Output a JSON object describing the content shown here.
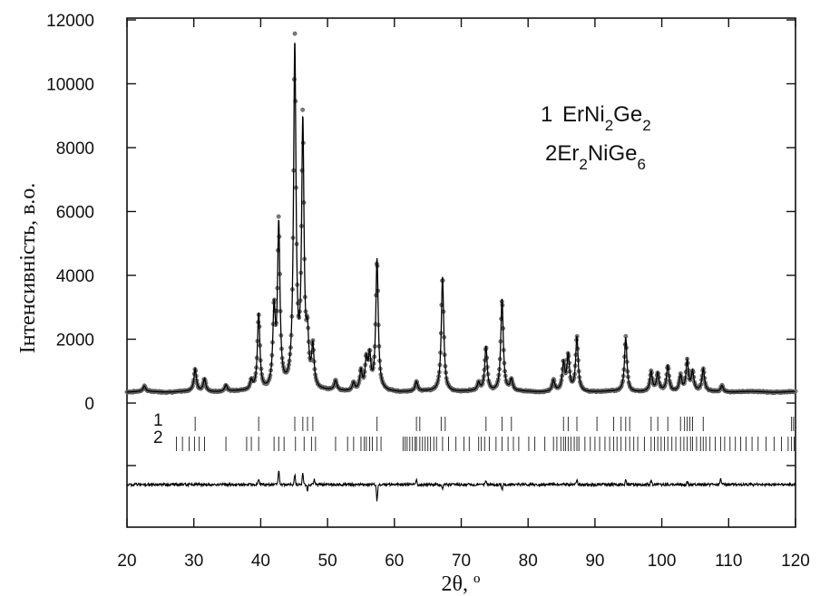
{
  "chart_data": {
    "type": "line",
    "title": "",
    "xlabel": "2θ, º",
    "ylabel": "Інтенсивність, в.о.",
    "xlim": [
      20,
      120
    ],
    "ylim": [
      0,
      12000
    ],
    "x_ticks": [
      "20",
      "30",
      "40",
      "50",
      "60",
      "70",
      "80",
      "90",
      "100",
      "110",
      "120"
    ],
    "y_ticks": [
      "0",
      "2000",
      "4000",
      "6000",
      "8000",
      "10000",
      "12000"
    ],
    "legend": {
      "position": "top-right",
      "phase1": {
        "number": "1",
        "formula": [
          "ErNi",
          "2",
          "Ge",
          "2"
        ]
      },
      "phase2": {
        "number": "2",
        "formula": [
          "Er",
          "2",
          "NiGe",
          "6"
        ]
      }
    },
    "background_level": 350,
    "peaks": [
      {
        "x": 22.6,
        "y": 520
      },
      {
        "x": 30.2,
        "y": 1050
      },
      {
        "x": 31.6,
        "y": 750
      },
      {
        "x": 34.8,
        "y": 550
      },
      {
        "x": 38.6,
        "y": 650
      },
      {
        "x": 39.7,
        "y": 2750
      },
      {
        "x": 42.0,
        "y": 2700
      },
      {
        "x": 42.7,
        "y": 5400
      },
      {
        "x": 45.1,
        "y": 11000
      },
      {
        "x": 46.3,
        "y": 8500
      },
      {
        "x": 47.0,
        "y": 1700
      },
      {
        "x": 47.8,
        "y": 1600
      },
      {
        "x": 51.2,
        "y": 650
      },
      {
        "x": 53.9,
        "y": 600
      },
      {
        "x": 55.0,
        "y": 950
      },
      {
        "x": 55.8,
        "y": 1250
      },
      {
        "x": 56.3,
        "y": 1350
      },
      {
        "x": 57.4,
        "y": 4450
      },
      {
        "x": 63.3,
        "y": 650
      },
      {
        "x": 67.2,
        "y": 3950
      },
      {
        "x": 72.6,
        "y": 600
      },
      {
        "x": 73.7,
        "y": 1750
      },
      {
        "x": 76.1,
        "y": 3250
      },
      {
        "x": 77.5,
        "y": 700
      },
      {
        "x": 83.8,
        "y": 700
      },
      {
        "x": 85.3,
        "y": 1200
      },
      {
        "x": 86.0,
        "y": 1450
      },
      {
        "x": 87.3,
        "y": 2050
      },
      {
        "x": 94.6,
        "y": 2050
      },
      {
        "x": 98.4,
        "y": 950
      },
      {
        "x": 99.4,
        "y": 900
      },
      {
        "x": 100.9,
        "y": 1150
      },
      {
        "x": 102.8,
        "y": 850
      },
      {
        "x": 103.8,
        "y": 1300
      },
      {
        "x": 104.6,
        "y": 950
      },
      {
        "x": 106.2,
        "y": 1050
      },
      {
        "x": 109.0,
        "y": 550
      }
    ],
    "phase_reflections": [
      {
        "name": "1",
        "positions": [
          30.2,
          39.7,
          45.1,
          46.3,
          47.0,
          47.8,
          57.4,
          63.3,
          63.8,
          67.0,
          67.6,
          73.7,
          76.1,
          77.5,
          85.3,
          86.0,
          87.3,
          90.3,
          92.8,
          93.9,
          94.6,
          95.2,
          98.4,
          99.4,
          100.9,
          102.8,
          103.4,
          103.8,
          104.2,
          104.6,
          106.2,
          119.4,
          119.7
        ]
      },
      {
        "name": "2",
        "positions": [
          27.4,
          28.3,
          29.3,
          30.1,
          30.8,
          31.6,
          34.8,
          37.9,
          38.6,
          39.7,
          42.0,
          42.7,
          43.5,
          45.2,
          46.5,
          47.6,
          48.2,
          51.2,
          53.0,
          53.9,
          55.0,
          55.5,
          55.8,
          56.3,
          56.7,
          57.4,
          58.0,
          61.3,
          61.6,
          61.9,
          62.3,
          62.7,
          63.1,
          63.3,
          63.8,
          64.2,
          64.6,
          65.0,
          65.4,
          65.9,
          66.3,
          67.2,
          68.1,
          69.2,
          70.4,
          71.2,
          72.6,
          73.0,
          73.5,
          74.2,
          75.2,
          76.1,
          77.0,
          77.8,
          78.6,
          80.1,
          81.0,
          82.5,
          83.8,
          84.3,
          84.9,
          85.3,
          85.6,
          86.0,
          86.4,
          86.9,
          87.3,
          87.6,
          88.5,
          89.3,
          90.0,
          90.7,
          91.5,
          92.2,
          92.8,
          93.3,
          93.9,
          94.6,
          95.2,
          95.8,
          96.4,
          97.4,
          98.4,
          98.9,
          99.4,
          99.9,
          100.4,
          100.9,
          101.5,
          102.1,
          102.8,
          103.3,
          103.8,
          104.3,
          104.6,
          105.2,
          105.8,
          106.2,
          106.6,
          107.2,
          108.0,
          108.8,
          109.4,
          110.2,
          111.0,
          111.8,
          112.6,
          113.5,
          114.4,
          115.6,
          116.8,
          117.9,
          118.9,
          119.4,
          119.8
        ]
      }
    ],
    "difference_spikes": [
      {
        "x": 39.7,
        "dy": -7
      },
      {
        "x": 42.7,
        "dy": -16
      },
      {
        "x": 45.1,
        "dy": -11
      },
      {
        "x": 46.3,
        "dy": -12
      },
      {
        "x": 47.0,
        "dy": 6
      },
      {
        "x": 48.0,
        "dy": -6
      },
      {
        "x": 57.4,
        "dy": 18
      },
      {
        "x": 63.3,
        "dy": -5
      },
      {
        "x": 67.2,
        "dy": 5
      },
      {
        "x": 73.7,
        "dy": -4
      },
      {
        "x": 76.1,
        "dy": 6
      },
      {
        "x": 87.3,
        "dy": -5
      },
      {
        "x": 94.6,
        "dy": -5
      },
      {
        "x": 98.4,
        "dy": -5
      },
      {
        "x": 103.8,
        "dy": -4
      },
      {
        "x": 108.8,
        "dy": -6
      }
    ]
  }
}
